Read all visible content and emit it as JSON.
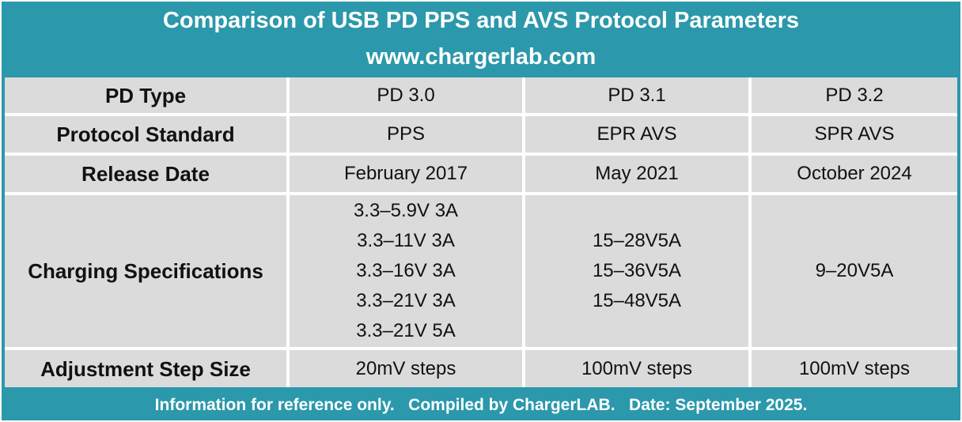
{
  "header": {
    "title": "Comparison of USB PD PPS and AVS Protocol Parameters",
    "site": "www.chargerlab.com"
  },
  "table": {
    "rows": [
      {
        "label": "PD Type",
        "cells": [
          [
            "PD 3.0"
          ],
          [
            "PD 3.1"
          ],
          [
            "PD 3.2"
          ]
        ]
      },
      {
        "label": "Protocol Standard",
        "cells": [
          [
            "PPS"
          ],
          [
            "EPR AVS"
          ],
          [
            "SPR AVS"
          ]
        ]
      },
      {
        "label": "Release Date",
        "cells": [
          [
            "February 2017"
          ],
          [
            "May 2021"
          ],
          [
            "October 2024"
          ]
        ]
      },
      {
        "label": "Charging Specifications",
        "cells": [
          [
            "3.3–5.9V 3A",
            "3.3–11V 3A",
            "3.3–16V 3A",
            "3.3–21V 3A",
            "3.3–21V 5A"
          ],
          [
            "15–28V5A",
            "15–36V5A",
            "15–48V5A"
          ],
          [
            "9–20V5A"
          ]
        ]
      },
      {
        "label": "Adjustment Step Size",
        "cells": [
          [
            "20mV steps"
          ],
          [
            "100mV steps"
          ],
          [
            "100mV steps"
          ]
        ]
      }
    ]
  },
  "footer": {
    "text": "Information for reference only.   Compiled by ChargerLAB.   Date: September 2025."
  },
  "colors": {
    "banner": "#2b98ab",
    "cell": "#dbdbdb",
    "text": "#111111"
  }
}
